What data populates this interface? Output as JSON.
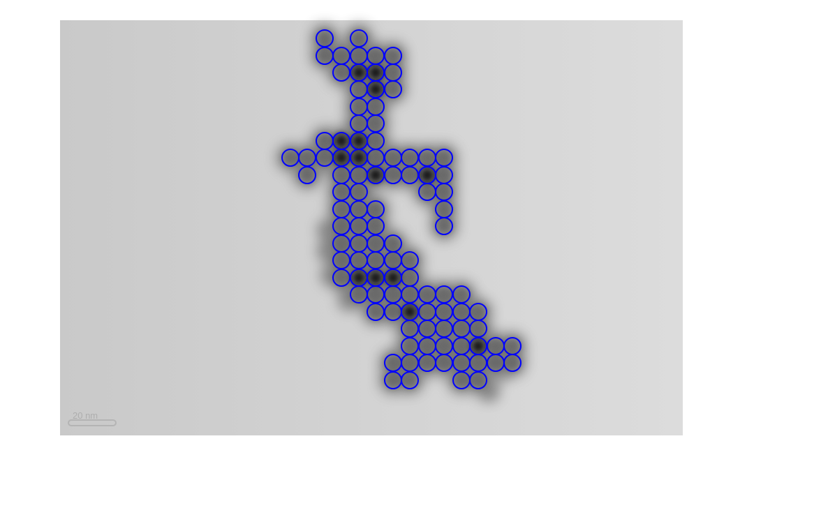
{
  "image": {
    "kind": "grayscale TEM micrograph of a particle aggregate with fitted circle overlay",
    "background_color": "#d4d4d4",
    "aggregate_color": "#5a5a5a",
    "overlay_color": "#0000ff",
    "scale_bar_text": "20 nm"
  }
}
